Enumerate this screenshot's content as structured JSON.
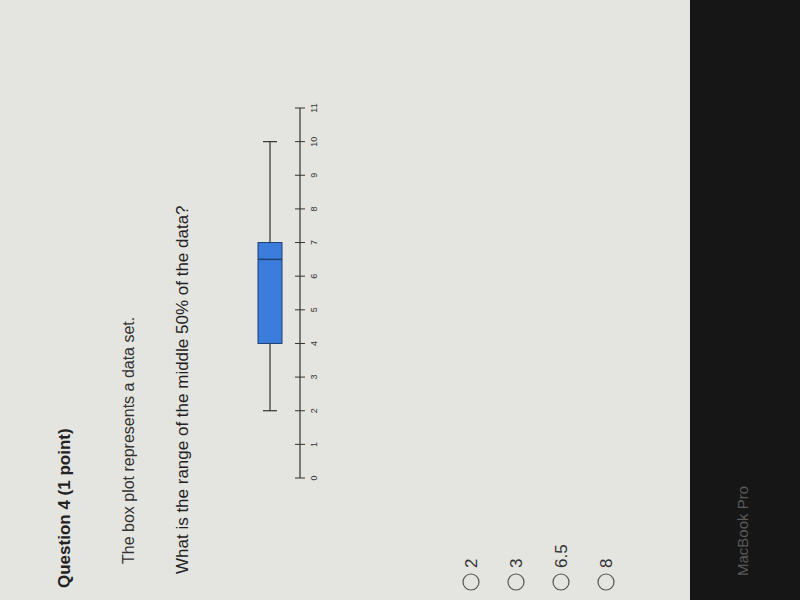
{
  "question": {
    "number_label": "Question 4 (1 point)",
    "prompt": "The box plot represents a data set.",
    "question": "What is the range of the middle 50% of the data?",
    "options": [
      "2",
      "3",
      "6.5",
      "8"
    ]
  },
  "chart_data": {
    "type": "box",
    "xlim": [
      0,
      11
    ],
    "xticks": [
      0,
      1,
      2,
      3,
      4,
      5,
      6,
      7,
      8,
      9,
      10,
      11
    ],
    "min": 2,
    "q1": 4,
    "median": 6.5,
    "q3": 7,
    "max": 10,
    "color": "#3b7ddd"
  },
  "device_label": "MacBook Pro"
}
